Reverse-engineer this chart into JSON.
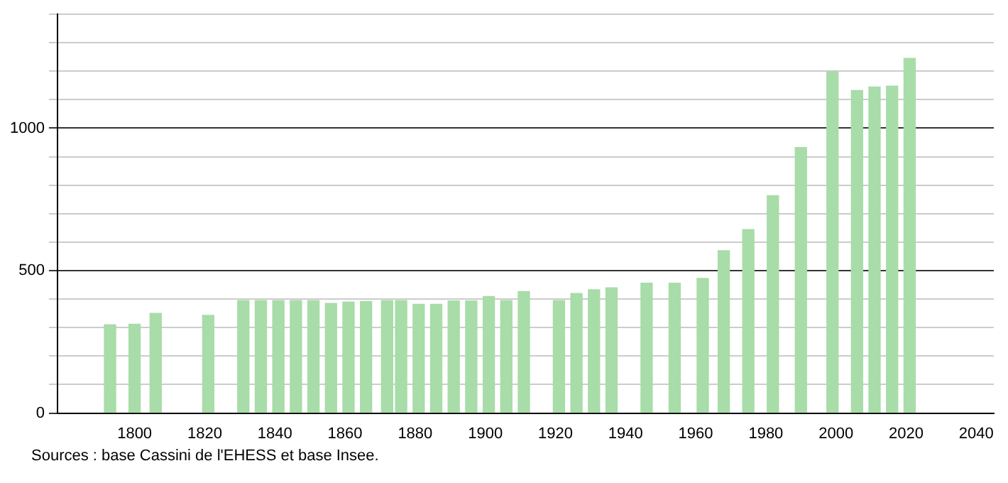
{
  "chart_data": {
    "type": "bar",
    "color": "#a8dca8",
    "x": [
      1793,
      1800,
      1806,
      1821,
      1831,
      1836,
      1841,
      1846,
      1851,
      1856,
      1861,
      1866,
      1872,
      1876,
      1881,
      1886,
      1891,
      1896,
      1901,
      1906,
      1911,
      1921,
      1926,
      1931,
      1936,
      1946,
      1954,
      1962,
      1968,
      1975,
      1982,
      1990,
      1999,
      2006,
      2011,
      2016,
      2021
    ],
    "values": [
      310,
      312,
      350,
      343,
      395,
      395,
      395,
      395,
      395,
      385,
      390,
      392,
      395,
      395,
      382,
      382,
      394,
      394,
      409,
      395,
      427,
      395,
      420,
      433,
      440,
      456,
      456,
      473,
      570,
      644,
      763,
      932,
      1198,
      1132,
      1145,
      1148,
      1245
    ],
    "xlim": [
      1778,
      2045
    ],
    "xticks": [
      1800,
      1820,
      1840,
      1860,
      1880,
      1900,
      1920,
      1940,
      1960,
      1980,
      2000,
      2020,
      2040
    ],
    "ylim": [
      0,
      1400
    ],
    "yticks": [
      0,
      {
        "value": 100,
        "label": null
      },
      {
        "value": 200,
        "label": null
      },
      {
        "value": 300,
        "label": null
      },
      {
        "value": 400,
        "label": null
      },
      500,
      {
        "value": 600,
        "label": null
      },
      {
        "value": 700,
        "label": null
      },
      {
        "value": 800,
        "label": null
      },
      {
        "value": 900,
        "label": null
      },
      1000,
      {
        "value": 1100,
        "label": null
      },
      {
        "value": 1200,
        "label": null
      },
      {
        "value": 1300,
        "label": null
      },
      {
        "value": 1400,
        "label": null
      }
    ],
    "grid": "y",
    "legend": false,
    "annotations": [
      "Sources : base Cassini de l'EHESS et base Insee."
    ]
  }
}
